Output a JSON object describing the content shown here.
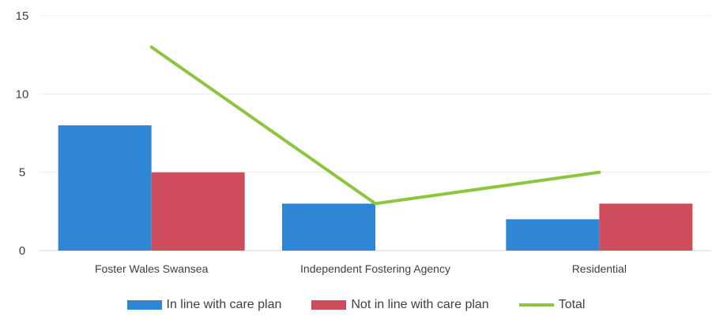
{
  "chart_data": {
    "type": "bar",
    "categories": [
      "Foster Wales Swansea",
      "Independent Fostering Agency",
      "Residential"
    ],
    "series": [
      {
        "name": "In line with care plan",
        "kind": "bar",
        "color": "#2e86d4",
        "values": [
          8,
          3,
          2
        ]
      },
      {
        "name": "Not in line with care plan",
        "kind": "bar",
        "color": "#cf4c5c",
        "values": [
          5,
          0,
          3
        ]
      },
      {
        "name": "Total",
        "kind": "line",
        "color": "#8cc63f",
        "values": [
          13,
          3,
          5
        ]
      }
    ],
    "ylim": [
      0,
      15
    ],
    "yticks": [
      0,
      5,
      10,
      15
    ],
    "grid": true,
    "legend_position": "bottom"
  }
}
